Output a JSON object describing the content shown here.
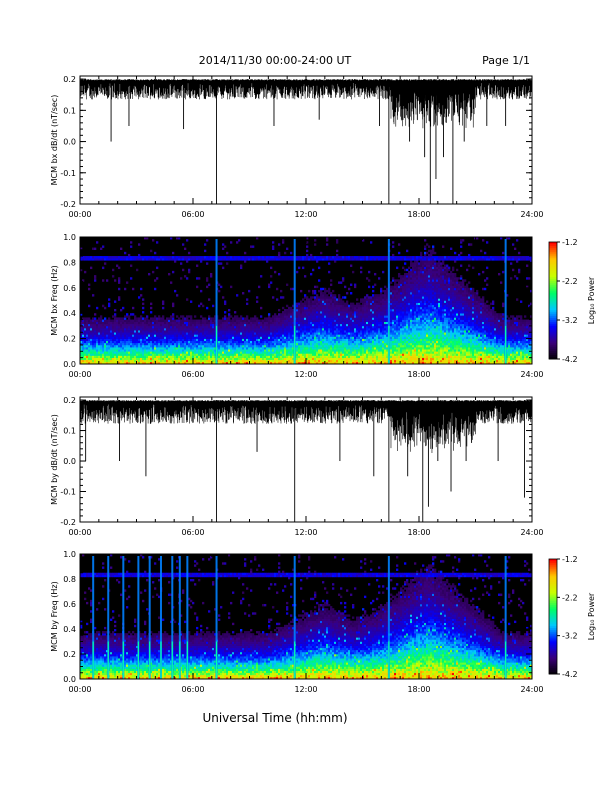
{
  "header": {
    "title": "2014/11/30  00:00-24:00 UT",
    "page": "Page 1/1"
  },
  "xlabel": "Universal Time (hh:mm)",
  "colorbar": {
    "label": "Log₁₀ Power",
    "ticks": [
      "-1.2",
      "-2.2",
      "-3.2",
      "-4.2"
    ],
    "range": [
      -4.2,
      -1.2
    ],
    "colors": [
      "#000000",
      "#3b0078",
      "#0000ff",
      "#00c8ff",
      "#00ff64",
      "#c8ff00",
      "#ffc800",
      "#ff0000"
    ]
  },
  "chart_data": [
    {
      "type": "line",
      "ylabel": "MCM bx dB/dt (nT/sec)",
      "xticks": [
        "00:00",
        "06:00",
        "12:00",
        "18:00",
        "24:00"
      ],
      "yticks": [
        "0.2",
        "0.1",
        "0.0",
        "-0.1",
        "-0.2"
      ],
      "xlim": [
        0,
        24
      ],
      "ylim": [
        -0.2,
        0.21
      ],
      "envelope": {
        "top": 0.2,
        "typical_min": 0.1
      },
      "spikes": [
        {
          "x": 1.65,
          "y": 0.0
        },
        {
          "x": 2.6,
          "y": 0.05
        },
        {
          "x": 5.5,
          "y": 0.04
        },
        {
          "x": 7.25,
          "y": -0.2
        },
        {
          "x": 10.3,
          "y": 0.05
        },
        {
          "x": 12.7,
          "y": 0.07
        },
        {
          "x": 15.9,
          "y": 0.05
        },
        {
          "x": 16.4,
          "y": -0.2
        },
        {
          "x": 17.5,
          "y": 0.0
        },
        {
          "x": 18.3,
          "y": -0.05
        },
        {
          "x": 18.6,
          "y": -0.2
        },
        {
          "x": 18.9,
          "y": -0.12
        },
        {
          "x": 19.3,
          "y": -0.05
        },
        {
          "x": 19.8,
          "y": -0.2
        },
        {
          "x": 20.4,
          "y": 0.0
        },
        {
          "x": 21.6,
          "y": 0.05
        },
        {
          "x": 22.6,
          "y": 0.05
        }
      ]
    },
    {
      "type": "heatmap",
      "ylabel": "MCM bx Freq (Hz)",
      "xticks": [
        "00:00",
        "06:00",
        "12:00",
        "18:00",
        "24:00"
      ],
      "yticks": [
        "1.0",
        "0.8",
        "0.6",
        "0.4",
        "0.2",
        "0.0"
      ],
      "xlim": [
        0,
        24
      ],
      "ylim": [
        0,
        1.0
      ],
      "narrowband_line_hz": 0.83,
      "broadband_events_ut": [
        7.25,
        11.4,
        16.4,
        22.6
      ]
    },
    {
      "type": "line",
      "ylabel": "MCM by dB/dt (nT/sec)",
      "xticks": [
        "00:00",
        "06:00",
        "12:00",
        "18:00",
        "24:00"
      ],
      "yticks": [
        "0.2",
        "0.1",
        "0.0",
        "-0.1",
        "-0.2"
      ],
      "xlim": [
        0,
        24
      ],
      "ylim": [
        -0.2,
        0.21
      ],
      "envelope": {
        "top": 0.2,
        "typical_min": 0.08
      },
      "spikes": [
        {
          "x": 0.3,
          "y": 0.0
        },
        {
          "x": 2.1,
          "y": 0.0
        },
        {
          "x": 3.5,
          "y": -0.05
        },
        {
          "x": 7.25,
          "y": -0.2
        },
        {
          "x": 9.4,
          "y": 0.03
        },
        {
          "x": 11.4,
          "y": -0.2
        },
        {
          "x": 13.8,
          "y": 0.0
        },
        {
          "x": 15.6,
          "y": -0.05
        },
        {
          "x": 16.4,
          "y": -0.2
        },
        {
          "x": 17.4,
          "y": -0.05
        },
        {
          "x": 18.2,
          "y": -0.2
        },
        {
          "x": 18.5,
          "y": -0.15
        },
        {
          "x": 19.0,
          "y": 0.0
        },
        {
          "x": 19.7,
          "y": -0.1
        },
        {
          "x": 20.5,
          "y": 0.0
        },
        {
          "x": 22.2,
          "y": 0.0
        },
        {
          "x": 23.6,
          "y": -0.12
        }
      ]
    },
    {
      "type": "heatmap",
      "ylabel": "MCM by Freq (Hz)",
      "xticks": [
        "00:00",
        "06:00",
        "12:00",
        "18:00",
        "24:00"
      ],
      "yticks": [
        "1.0",
        "0.8",
        "0.6",
        "0.4",
        "0.2",
        "0.0"
      ],
      "xlim": [
        0,
        24
      ],
      "ylim": [
        0,
        1.0
      ],
      "narrowband_line_hz": 0.83,
      "broadband_events_ut": [
        0.7,
        1.5,
        2.3,
        3.1,
        3.7,
        4.3,
        4.9,
        5.3,
        5.7,
        7.25,
        11.4,
        16.4,
        22.6
      ]
    }
  ]
}
